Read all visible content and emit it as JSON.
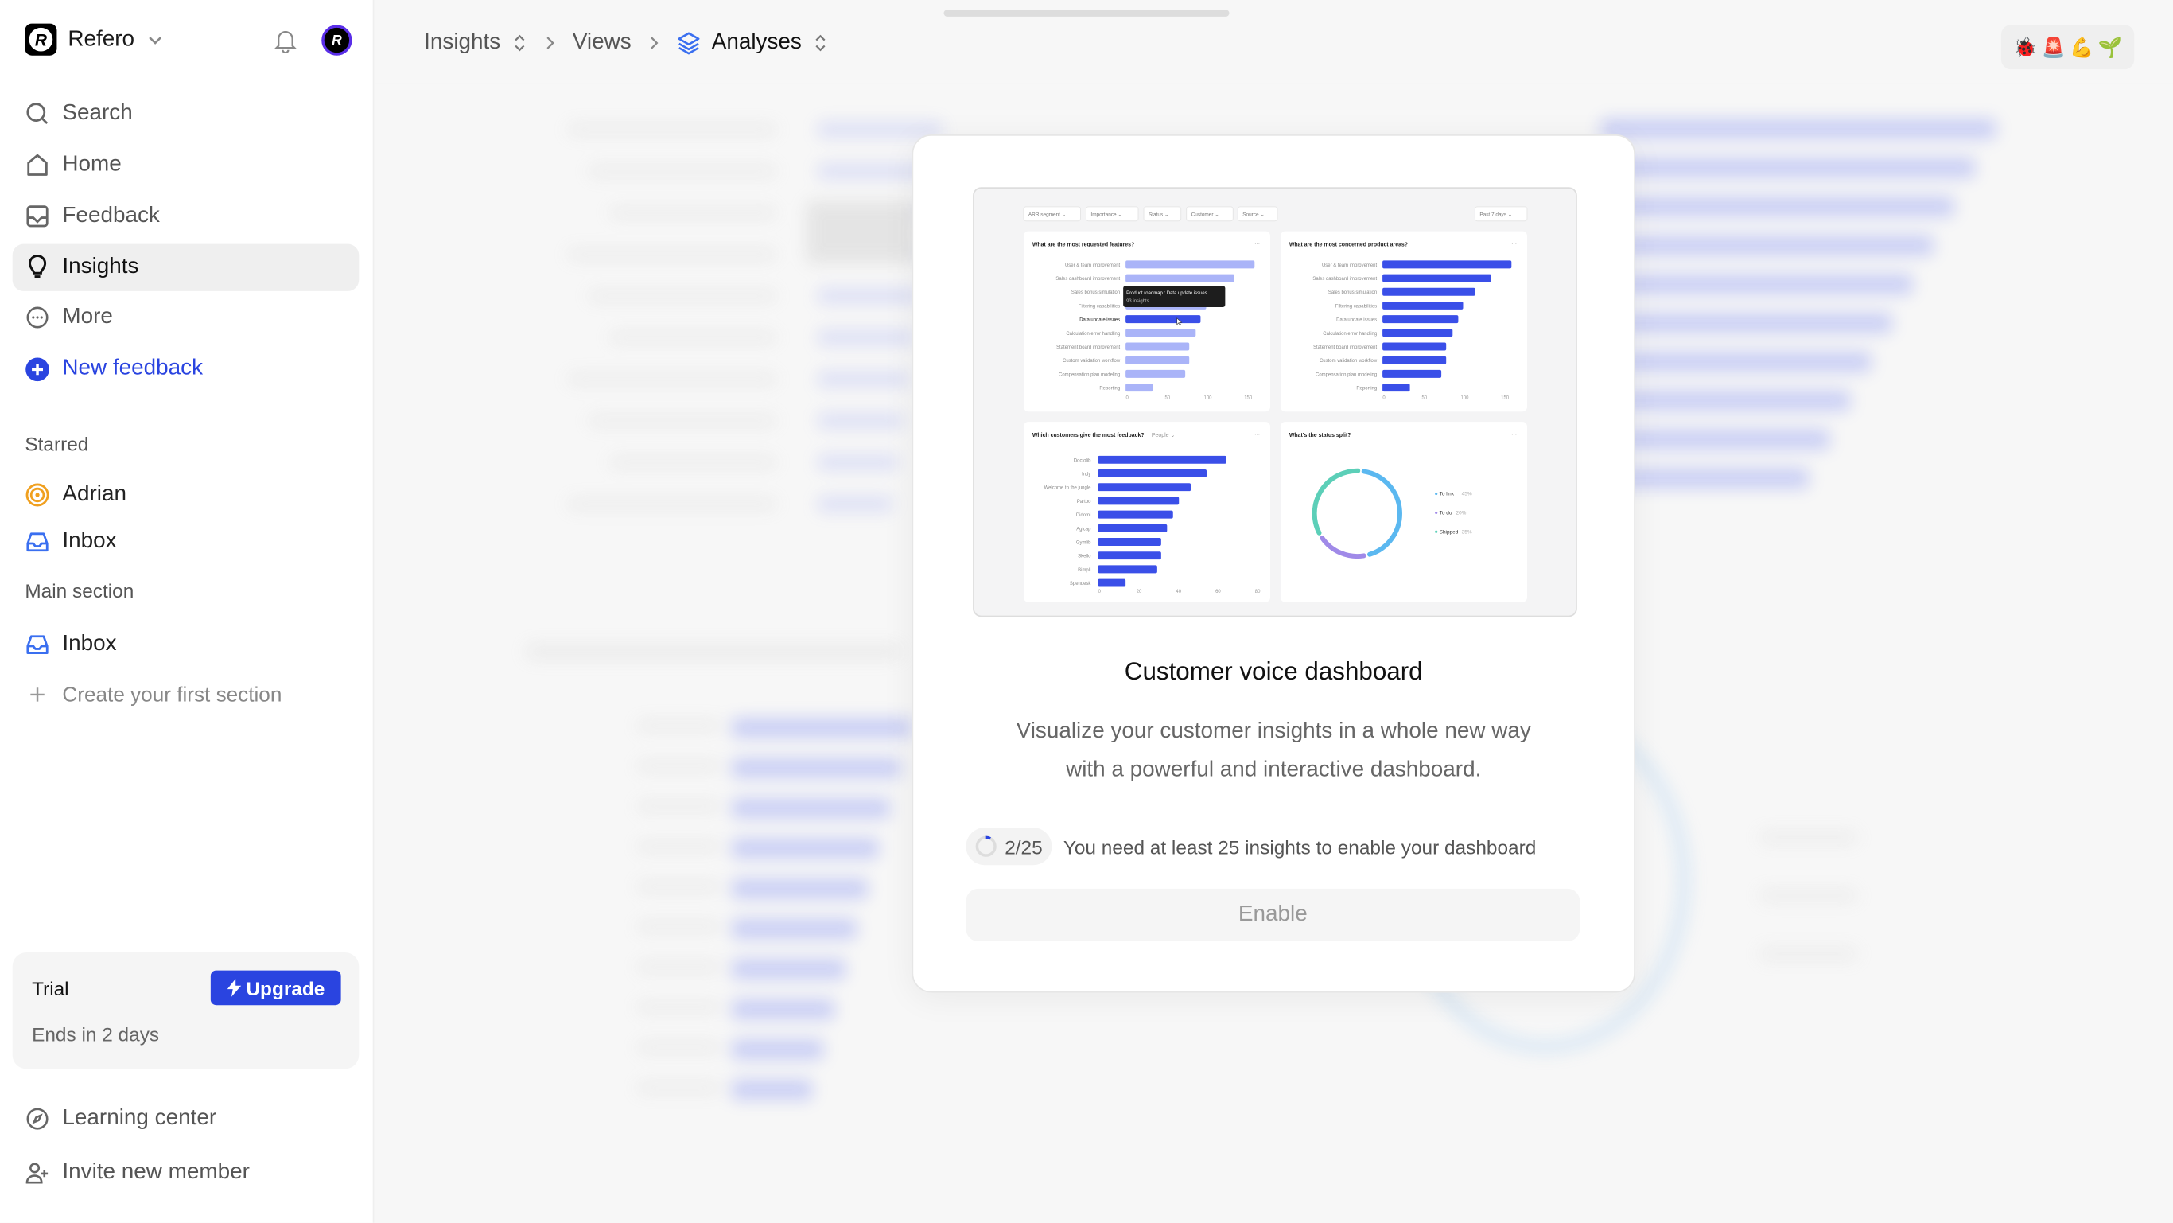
{
  "sidebar": {
    "workspace": "Refero",
    "logo_letter": "R",
    "nav": [
      {
        "label": "Search",
        "icon": "search-icon"
      },
      {
        "label": "Home",
        "icon": "home-icon"
      },
      {
        "label": "Feedback",
        "icon": "inbox-tray-icon"
      },
      {
        "label": "Insights",
        "icon": "lightbulb-icon",
        "active": true
      },
      {
        "label": "More",
        "icon": "more-circle-icon"
      }
    ],
    "new_feedback": "New feedback",
    "starred_label": "Starred",
    "starred": [
      {
        "label": "Adrian",
        "icon": "target-icon"
      },
      {
        "label": "Inbox",
        "icon": "inbox-icon"
      }
    ],
    "main_section_label": "Main section",
    "main_section": [
      {
        "label": "Inbox",
        "icon": "inbox-icon"
      }
    ],
    "create_section": "Create your first section",
    "trial": {
      "title": "Trial",
      "ends": "Ends in 2 days",
      "upgrade": "Upgrade"
    },
    "learning_center": "Learning center",
    "invite": "Invite new member"
  },
  "breadcrumb": [
    "Insights",
    "Views",
    "Analyses"
  ],
  "emoji_bar": [
    "🐞",
    "🚨",
    "💪",
    "🌱"
  ],
  "colors": {
    "accent": "#2a44e0",
    "bar_dark": "#3a4fe8",
    "bar_light": "#aab4f8",
    "to_link": "#5bb8f0",
    "to_do": "#a08ae8",
    "shipped": "#5ccfb8"
  },
  "modal": {
    "title": "Customer voice dashboard",
    "description": "Visualize your customer insights in a whole new way with a powerful and interactive dashboard.",
    "progress_value": 2,
    "progress_max": 25,
    "progress_text": "2/25",
    "requirement": "You need at least 25 insights to enable your dashboard",
    "enable": "Enable"
  },
  "preview": {
    "filters": [
      "ARR segment",
      "Importance",
      "Status",
      "Customer",
      "Source"
    ],
    "period": "Past 7 days",
    "chart_data": [
      {
        "type": "bar",
        "title": "What are the most requested features?",
        "categories": [
          "User & team improvement",
          "Sales dashboard improvement",
          "Sales bonus simulation",
          "Filtering capabilities",
          "Data update issues",
          "Calculation error handling",
          "Statement board improvement",
          "Custom validation workflow",
          "Compensation plan modeling",
          "Reporting"
        ],
        "values": [
          160,
          135,
          115,
          100,
          93,
          87,
          79,
          79,
          74,
          34
        ],
        "highlight": "Data update issues",
        "xticks": [
          0,
          50,
          100,
          150
        ],
        "tooltip": {
          "title": "Product roadmap : Data update issues",
          "value": "93 insights"
        }
      },
      {
        "type": "bar",
        "title": "What are the most concerned product areas?",
        "categories": [
          "User & team improvement",
          "Sales dashboard improvement",
          "Sales bonus simulation",
          "Filtering capabilities",
          "Data update issues",
          "Calculation error handling",
          "Statement board improvement",
          "Custom validation workflow",
          "Compensation plan modeling",
          "Reporting"
        ],
        "values": [
          160,
          135,
          115,
          100,
          94,
          87,
          79,
          79,
          73,
          34
        ],
        "xticks": [
          0,
          50,
          100,
          150
        ]
      },
      {
        "type": "bar",
        "title": "Which customers give the most feedback?",
        "dropdown": "People",
        "categories": [
          "Doctolib",
          "Indy",
          "Welcome to the jungle",
          "Partoo",
          "Didomi",
          "Agicap",
          "Gymlib",
          "Skello",
          "Bimpli",
          "Spendesk"
        ],
        "values": [
          65,
          55,
          47,
          41,
          38,
          35,
          32,
          32,
          30,
          14
        ],
        "xticks": [
          0,
          20,
          40,
          60,
          80
        ]
      },
      {
        "type": "pie",
        "title": "What's the status split?",
        "categories": [
          "To link",
          "To do",
          "Shipped"
        ],
        "values": [
          45,
          20,
          35
        ],
        "labels": [
          "45%",
          "20%",
          "35%"
        ]
      }
    ]
  }
}
